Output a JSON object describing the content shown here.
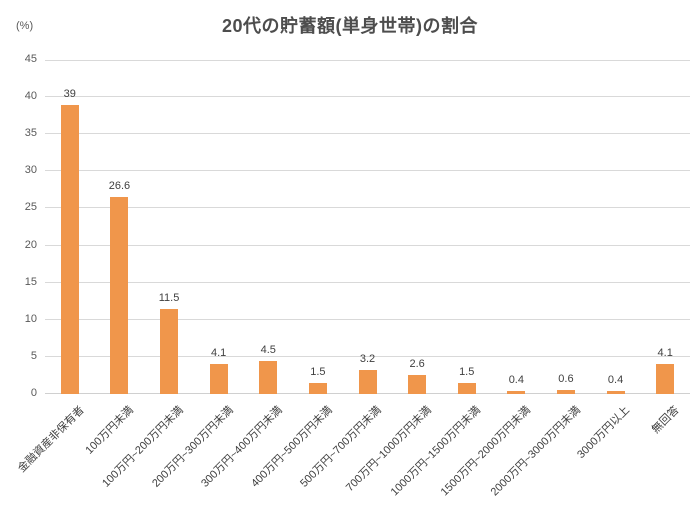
{
  "chart_data": {
    "type": "bar",
    "title": "20代の貯蓄額(単身世帯)の割合",
    "ylabel": "(%)",
    "xlabel": "",
    "categories": [
      "金融資産非保有者",
      "100万円未満",
      "100万円~200万円未満",
      "200万円~300万円未満",
      "300万円~400万円未満",
      "400万円~500万円未満",
      "500万円~700万円未満",
      "700万円~1000万円未満",
      "1000万円~1500万円未満",
      "1500万円~2000万円未満",
      "2000万円~3000万円未満",
      "3000万円以上",
      "無回答"
    ],
    "values": [
      39,
      26.6,
      11.5,
      4.1,
      4.5,
      1.5,
      3.2,
      2.6,
      1.5,
      0.4,
      0.6,
      0.4,
      4.1
    ],
    "data_labels": [
      "39",
      "26.6",
      "11.5",
      "4.1",
      "4.5",
      "1.5",
      "3.2",
      "2.6",
      "1.5",
      "0.4",
      "0.6",
      "0.4",
      "4.1"
    ],
    "ylim": [
      0,
      45
    ],
    "yticks": [
      0,
      5,
      10,
      15,
      20,
      25,
      30,
      35,
      40,
      45
    ],
    "grid": true,
    "legend": false
  },
  "colors": {
    "bar": "#f0964b",
    "grid": "#d9d9d9",
    "title_text": "#4d4d4d",
    "axis_text": "#595959",
    "label_text": "#404040",
    "background": "#ffffff"
  }
}
